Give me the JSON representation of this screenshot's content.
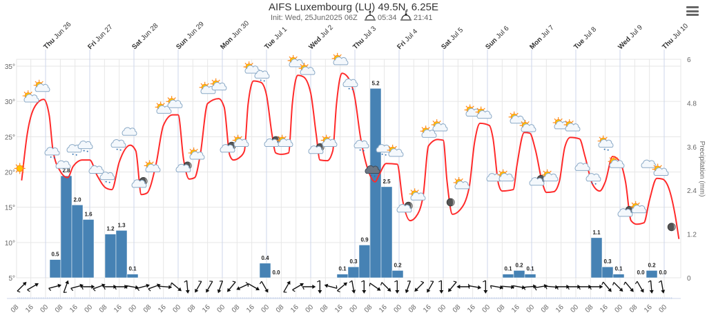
{
  "header": {
    "title": "AIFS Luxembourg (LU) 49.5N, 6.25E",
    "init": "Init: Wed, 25Jun2025 06Z",
    "sunrise": "05:34",
    "sunset": "21:41",
    "sunrise_icon": "sunrise-icon",
    "sunset_icon": "sunset-icon",
    "menu_icon": "hamburger-menu-icon"
  },
  "chart_data": {
    "type": "line+bar",
    "colors": {
      "temperature": "#ff2a2a",
      "precipitation": "#4682b4",
      "grid": "#e6e6e6",
      "dayline": "#ccd6eb"
    },
    "grid": true,
    "x_axis": {
      "day_labels": [
        {
          "wd": "Thu",
          "md": "Jun 26",
          "date": "2025-06-26T00:00Z"
        },
        {
          "wd": "Fri",
          "md": "Jun 27",
          "date": "2025-06-27T00:00Z"
        },
        {
          "wd": "Sat",
          "md": "Jun 28",
          "date": "2025-06-28T00:00Z"
        },
        {
          "wd": "Sun",
          "md": "Jun 29",
          "date": "2025-06-29T00:00Z"
        },
        {
          "wd": "Mon",
          "md": "Jun 30",
          "date": "2025-06-30T00:00Z"
        },
        {
          "wd": "Tue",
          "md": "Jul 1",
          "date": "2025-07-01T00:00Z"
        },
        {
          "wd": "Wed",
          "md": "Jul 2",
          "date": "2025-07-02T00:00Z"
        },
        {
          "wd": "Thu",
          "md": "Jul 3",
          "date": "2025-07-03T00:00Z"
        },
        {
          "wd": "Fri",
          "md": "Jul 4",
          "date": "2025-07-04T00:00Z"
        },
        {
          "wd": "Sat",
          "md": "Jul 5",
          "date": "2025-07-05T00:00Z"
        },
        {
          "wd": "Sun",
          "md": "Jul 6",
          "date": "2025-07-06T00:00Z"
        },
        {
          "wd": "Mon",
          "md": "Jul 7",
          "date": "2025-07-07T00:00Z"
        },
        {
          "wd": "Tue",
          "md": "Jul 8",
          "date": "2025-07-08T00:00Z"
        },
        {
          "wd": "Wed",
          "md": "Jul 9",
          "date": "2025-07-09T00:00Z"
        },
        {
          "wd": "Thu",
          "md": "Jul 10",
          "date": "2025-07-10T00:00Z"
        }
      ],
      "hour_ticks_start": "2025-06-25T08:00Z",
      "hour_tick_labels": [
        "08",
        "16",
        "00",
        "08",
        "16",
        "00",
        "08",
        "16",
        "00",
        "08",
        "16",
        "00",
        "08",
        "16",
        "00",
        "08",
        "16",
        "00",
        "08",
        "16",
        "00",
        "08",
        "16",
        "00",
        "08",
        "16",
        "00",
        "08",
        "16",
        "00",
        "08",
        "16",
        "00",
        "08",
        "16",
        "00",
        "08",
        "16",
        "00",
        "08",
        "16",
        "00",
        "08",
        "16",
        "00"
      ]
    },
    "y_left": {
      "ticks": [
        "5°",
        "10°",
        "15°",
        "20°",
        "25°",
        "30°",
        "35°"
      ],
      "values": [
        5,
        10,
        15,
        20,
        25,
        30,
        35
      ],
      "range": [
        5,
        35
      ]
    },
    "y_right": {
      "label": "Precipitation (mm)",
      "ticks": [
        "0",
        "1.2",
        "2.4",
        "3.6",
        "4.8",
        "6"
      ],
      "values": [
        0,
        1.2,
        2.4,
        3.6,
        4.8,
        6
      ],
      "range": [
        0,
        6
      ]
    },
    "temperature": [
      [
        "2025-06-25T11:00Z",
        18.8
      ],
      [
        "2025-06-25T14:00Z",
        25.3
      ],
      [
        "2025-06-25T19:00Z",
        29.6
      ],
      [
        "2025-06-25T23:00Z",
        30.3
      ],
      [
        "2025-06-26T02:00Z",
        28.0
      ],
      [
        "2025-06-26T04:00Z",
        23.1
      ],
      [
        "2025-06-26T08:00Z",
        20.1
      ],
      [
        "2025-06-26T12:00Z",
        19.2
      ],
      [
        "2025-06-26T15:00Z",
        20.8
      ],
      [
        "2025-06-26T20:00Z",
        21.7
      ],
      [
        "2025-06-27T00:00Z",
        21.7
      ],
      [
        "2025-06-27T04:00Z",
        19.5
      ],
      [
        "2025-06-27T09:00Z",
        17.7
      ],
      [
        "2025-06-27T12:00Z",
        17.5
      ],
      [
        "2025-06-27T16:00Z",
        21.4
      ],
      [
        "2025-06-27T22:00Z",
        23.8
      ],
      [
        "2025-06-28T01:00Z",
        23.0
      ],
      [
        "2025-06-28T04:00Z",
        16.8
      ],
      [
        "2025-06-28T07:00Z",
        17.0
      ],
      [
        "2025-06-28T12:00Z",
        21.1
      ],
      [
        "2025-06-28T16:00Z",
        26.6
      ],
      [
        "2025-06-28T21:00Z",
        28.1
      ],
      [
        "2025-06-29T00:00Z",
        28.1
      ],
      [
        "2025-06-29T03:00Z",
        21.7
      ],
      [
        "2025-06-29T06:00Z",
        19.0
      ],
      [
        "2025-06-29T09:00Z",
        19.2
      ],
      [
        "2025-06-29T12:00Z",
        22.4
      ],
      [
        "2025-06-29T16:00Z",
        29.7
      ],
      [
        "2025-06-29T22:00Z",
        30.4
      ],
      [
        "2025-06-30T01:00Z",
        29.2
      ],
      [
        "2025-06-30T04:00Z",
        22.4
      ],
      [
        "2025-06-30T06:00Z",
        21.7
      ],
      [
        "2025-06-30T10:00Z",
        22.2
      ],
      [
        "2025-06-30T12:00Z",
        23.0
      ],
      [
        "2025-06-30T14:00Z",
        29.6
      ],
      [
        "2025-06-30T17:00Z",
        32.9
      ],
      [
        "2025-06-30T21:00Z",
        32.7
      ],
      [
        "2025-07-01T00:00Z",
        30.9
      ],
      [
        "2025-07-01T03:00Z",
        25.3
      ],
      [
        "2025-07-01T05:00Z",
        22.7
      ],
      [
        "2025-07-01T08:00Z",
        22.5
      ],
      [
        "2025-07-01T12:00Z",
        22.7
      ],
      [
        "2025-07-01T14:00Z",
        29.6
      ],
      [
        "2025-07-01T17:00Z",
        33.7
      ],
      [
        "2025-07-01T20:00Z",
        33.5
      ],
      [
        "2025-07-02T00:00Z",
        31.2
      ],
      [
        "2025-07-02T03:00Z",
        25.3
      ],
      [
        "2025-07-02T05:00Z",
        21.7
      ],
      [
        "2025-07-02T09:00Z",
        21.6
      ],
      [
        "2025-07-02T12:00Z",
        23.0
      ],
      [
        "2025-07-02T14:00Z",
        29.6
      ],
      [
        "2025-07-02T17:00Z",
        34.0
      ],
      [
        "2025-07-02T20:00Z",
        33.5
      ],
      [
        "2025-07-03T00:00Z",
        30.5
      ],
      [
        "2025-07-03T03:00Z",
        25.0
      ],
      [
        "2025-07-03T07:00Z",
        20.4
      ],
      [
        "2025-07-03T11:00Z",
        18.6
      ],
      [
        "2025-07-03T13:00Z",
        19.5
      ],
      [
        "2025-07-03T17:00Z",
        21.2
      ],
      [
        "2025-07-03T23:00Z",
        21.1
      ],
      [
        "2025-07-04T02:00Z",
        15.9
      ],
      [
        "2025-07-04T06:00Z",
        13.1
      ],
      [
        "2025-07-04T09:00Z",
        13.6
      ],
      [
        "2025-07-04T13:00Z",
        16.5
      ],
      [
        "2025-07-04T16:00Z",
        23.7
      ],
      [
        "2025-07-04T21:00Z",
        24.6
      ],
      [
        "2025-07-05T00:00Z",
        24.5
      ],
      [
        "2025-07-05T02:00Z",
        18.8
      ],
      [
        "2025-07-05T05:00Z",
        14.0
      ],
      [
        "2025-07-05T09:00Z",
        14.6
      ],
      [
        "2025-07-05T14:00Z",
        17.7
      ],
      [
        "2025-07-05T17:00Z",
        24.2
      ],
      [
        "2025-07-05T20:00Z",
        26.9
      ],
      [
        "2025-07-06T01:00Z",
        26.6
      ],
      [
        "2025-07-06T03:00Z",
        24.8
      ],
      [
        "2025-07-06T06:00Z",
        18.3
      ],
      [
        "2025-07-06T08:00Z",
        17.3
      ],
      [
        "2025-07-06T14:00Z",
        17.5
      ],
      [
        "2025-07-06T16:00Z",
        20.9
      ],
      [
        "2025-07-06T20:00Z",
        25.6
      ],
      [
        "2025-07-06T23:00Z",
        25.5
      ],
      [
        "2025-07-07T02:00Z",
        23.2
      ],
      [
        "2025-07-07T06:00Z",
        18.3
      ],
      [
        "2025-07-07T08:00Z",
        17.1
      ],
      [
        "2025-07-07T12:00Z",
        17.2
      ],
      [
        "2025-07-07T15:00Z",
        18.6
      ],
      [
        "2025-07-07T18:00Z",
        23.5
      ],
      [
        "2025-07-07T21:00Z",
        24.9
      ],
      [
        "2025-07-08T02:00Z",
        24.7
      ],
      [
        "2025-07-08T05:00Z",
        22.2
      ],
      [
        "2025-07-08T09:00Z",
        18.3
      ],
      [
        "2025-07-08T13:00Z",
        17.3
      ],
      [
        "2025-07-08T16:00Z",
        18.6
      ],
      [
        "2025-07-08T20:00Z",
        22.2
      ],
      [
        "2025-07-09T00:00Z",
        21.4
      ],
      [
        "2025-07-09T03:00Z",
        18.6
      ],
      [
        "2025-07-09T06:00Z",
        13.1
      ],
      [
        "2025-07-09T09:00Z",
        12.6
      ],
      [
        "2025-07-09T13:00Z",
        12.8
      ],
      [
        "2025-07-09T16:00Z",
        16.0
      ],
      [
        "2025-07-09T20:00Z",
        19.1
      ],
      [
        "2025-07-09T23:00Z",
        19.0
      ],
      [
        "2025-07-10T03:00Z",
        17.3
      ],
      [
        "2025-07-10T06:00Z",
        13.8
      ],
      [
        "2025-07-10T08:00Z",
        10.5
      ]
    ],
    "precipitation": [
      {
        "time": "2025-06-26T06:00Z",
        "value": 0.5,
        "label": "0.5"
      },
      {
        "time": "2025-06-26T12:00Z",
        "value": 2.8,
        "label": "2.8"
      },
      {
        "time": "2025-06-26T18:00Z",
        "value": 2.0,
        "label": "2.0"
      },
      {
        "time": "2025-06-27T00:00Z",
        "value": 1.6,
        "label": "1.6"
      },
      {
        "time": "2025-06-27T12:00Z",
        "value": 1.2,
        "label": "1.2"
      },
      {
        "time": "2025-06-27T18:00Z",
        "value": 1.3,
        "label": "1.3"
      },
      {
        "time": "2025-06-28T00:00Z",
        "value": 0.1,
        "label": "0.1"
      },
      {
        "time": "2025-07-01T00:00Z",
        "value": 0.4,
        "label": "0.4"
      },
      {
        "time": "2025-07-01T06:00Z",
        "value": 0.0,
        "label": "0.0"
      },
      {
        "time": "2025-07-02T18:00Z",
        "value": 0.1,
        "label": "0.1"
      },
      {
        "time": "2025-07-03T00:00Z",
        "value": 0.3,
        "label": "0.3"
      },
      {
        "time": "2025-07-03T06:00Z",
        "value": 0.9,
        "label": "0.9"
      },
      {
        "time": "2025-07-03T12:00Z",
        "value": 5.2,
        "label": "5.2"
      },
      {
        "time": "2025-07-03T18:00Z",
        "value": 2.5,
        "label": "2.5"
      },
      {
        "time": "2025-07-04T00:00Z",
        "value": 0.2,
        "label": "0.2"
      },
      {
        "time": "2025-07-06T12:00Z",
        "value": 0.1,
        "label": "0.1"
      },
      {
        "time": "2025-07-06T18:00Z",
        "value": 0.2,
        "label": "0.2"
      },
      {
        "time": "2025-07-07T00:00Z",
        "value": 0.1,
        "label": "0.1"
      },
      {
        "time": "2025-07-08T12:00Z",
        "value": 1.1,
        "label": "1.1"
      },
      {
        "time": "2025-07-08T18:00Z",
        "value": 0.3,
        "label": "0.3"
      },
      {
        "time": "2025-07-09T00:00Z",
        "value": 0.1,
        "label": "0.1"
      },
      {
        "time": "2025-07-09T12:00Z",
        "value": 0.0,
        "label": "0.0"
      },
      {
        "time": "2025-07-09T18:00Z",
        "value": 0.2,
        "label": "0.2"
      },
      {
        "time": "2025-07-10T00:00Z",
        "value": 0.0,
        "label": "0.0"
      }
    ],
    "weather_symbols": [
      [
        "2025-06-25T10:00Z",
        20.5,
        "sun"
      ],
      [
        "2025-06-25T16:00Z",
        30.5,
        "sun-cloud"
      ],
      [
        "2025-06-25T22:00Z",
        32.0,
        "sun-cloud"
      ],
      [
        "2025-06-26T04:00Z",
        22.7,
        "cloud-rain"
      ],
      [
        "2025-06-26T10:00Z",
        20.9,
        "cloud"
      ],
      [
        "2025-06-26T16:00Z",
        23.1,
        "cloud-rain"
      ],
      [
        "2025-06-26T22:00Z",
        23.6,
        "cloud-rain"
      ],
      [
        "2025-06-27T04:00Z",
        20.2,
        "cloud"
      ],
      [
        "2025-06-27T10:00Z",
        19.2,
        "cloud-rain"
      ],
      [
        "2025-06-27T16:00Z",
        23.8,
        "cloud-rain"
      ],
      [
        "2025-06-27T22:00Z",
        25.6,
        "cloud"
      ],
      [
        "2025-06-28T04:00Z",
        18.4,
        "moon-cloud"
      ],
      [
        "2025-06-28T10:00Z",
        20.6,
        "sun-cloud"
      ],
      [
        "2025-06-28T16:00Z",
        28.9,
        "sun-cloud"
      ],
      [
        "2025-06-28T22:00Z",
        29.7,
        "sun-cloud"
      ],
      [
        "2025-06-29T04:00Z",
        20.6,
        "moon-cloud"
      ],
      [
        "2025-06-29T10:00Z",
        22.4,
        "sun-cloud"
      ],
      [
        "2025-06-29T16:00Z",
        31.7,
        "sun-cloud"
      ],
      [
        "2025-06-29T22:00Z",
        32.2,
        "sun-cloud"
      ],
      [
        "2025-06-30T04:00Z",
        23.4,
        "moon-cloud"
      ],
      [
        "2025-06-30T10:00Z",
        24.2,
        "sun-cloud"
      ],
      [
        "2025-06-30T16:00Z",
        34.6,
        "sun-cloud"
      ],
      [
        "2025-06-30T22:00Z",
        33.6,
        "cloud-rain"
      ],
      [
        "2025-07-01T04:00Z",
        24.2,
        "moon-cloud"
      ],
      [
        "2025-07-01T10:00Z",
        24.2,
        "sun-cloud"
      ],
      [
        "2025-07-01T16:00Z",
        35.5,
        "sun-cloud"
      ],
      [
        "2025-07-01T22:00Z",
        34.4,
        "sun-cloud"
      ],
      [
        "2025-07-02T04:00Z",
        23.2,
        "moon-cloud"
      ],
      [
        "2025-07-02T10:00Z",
        24.2,
        "sun-cloud"
      ],
      [
        "2025-07-02T16:00Z",
        35.8,
        "sun-cloud"
      ],
      [
        "2025-07-02T22:00Z",
        32.4,
        "cloud-rain"
      ],
      [
        "2025-07-03T04:00Z",
        23.7,
        "cloud-rain"
      ],
      [
        "2025-07-03T10:00Z",
        20.1,
        "thunder-rain"
      ],
      [
        "2025-07-03T16:00Z",
        23.1,
        "cloud-rain"
      ],
      [
        "2025-07-03T22:00Z",
        22.8,
        "sun-cloud"
      ],
      [
        "2025-07-04T04:00Z",
        14.9,
        "moon-cloud"
      ],
      [
        "2025-07-04T10:00Z",
        16.6,
        "sun-cloud"
      ],
      [
        "2025-07-04T16:00Z",
        25.5,
        "sun-cloud"
      ],
      [
        "2025-07-04T22:00Z",
        26.4,
        "sun-cloud"
      ],
      [
        "2025-07-05T04:00Z",
        15.7,
        "moon"
      ],
      [
        "2025-07-05T10:00Z",
        18.2,
        "sun-cloud"
      ],
      [
        "2025-07-05T16:00Z",
        28.5,
        "sun-cloud"
      ],
      [
        "2025-07-05T22:00Z",
        28.2,
        "sun-cloud"
      ],
      [
        "2025-07-06T04:00Z",
        19.1,
        "cloud"
      ],
      [
        "2025-07-06T10:00Z",
        19.3,
        "sun-cloud"
      ],
      [
        "2025-07-06T16:00Z",
        27.5,
        "sun-cloud"
      ],
      [
        "2025-07-06T22:00Z",
        26.3,
        "sun-cloud"
      ],
      [
        "2025-07-07T04:00Z",
        18.7,
        "moon-cloud"
      ],
      [
        "2025-07-07T10:00Z",
        19.3,
        "sun-cloud"
      ],
      [
        "2025-07-07T16:00Z",
        26.7,
        "sun-cloud"
      ],
      [
        "2025-07-07T22:00Z",
        26.4,
        "sun-cloud"
      ],
      [
        "2025-07-08T04:00Z",
        20.6,
        "cloud"
      ],
      [
        "2025-07-08T10:00Z",
        19.0,
        "cloud-rain"
      ],
      [
        "2025-07-08T16:00Z",
        24.0,
        "sun-cloud-rain"
      ],
      [
        "2025-07-08T22:00Z",
        21.2,
        "sun-cloud"
      ],
      [
        "2025-07-09T04:00Z",
        14.3,
        "moon-cloud"
      ],
      [
        "2025-07-09T10:00Z",
        14.8,
        "sun-cloud"
      ],
      [
        "2025-07-09T16:00Z",
        21.0,
        "cloud"
      ],
      [
        "2025-07-09T22:00Z",
        20.1,
        "sun-cloud"
      ],
      [
        "2025-07-10T04:00Z",
        12.2,
        "moon"
      ]
    ],
    "wind": {
      "start": "2025-06-25T11:00Z",
      "step_hours": 6,
      "direction_to_deg": [
        45,
        60,
        null,
        75,
        20,
        75,
        90,
        70,
        90,
        90,
        100,
        75,
        70,
        95,
        130,
        175,
        210,
        210,
        200,
        220,
        245,
        120,
        150,
        null,
        30,
        60,
        90,
        180,
        285,
        50,
        170,
        180,
        125,
        135,
        180,
        200,
        225,
        210,
        180,
        220,
        270,
        100,
        180,
        100,
        95,
        100,
        85,
        80,
        95,
        90,
        90,
        90,
        90,
        140,
        135,
        140,
        150,
        175,
        170
      ]
    }
  }
}
